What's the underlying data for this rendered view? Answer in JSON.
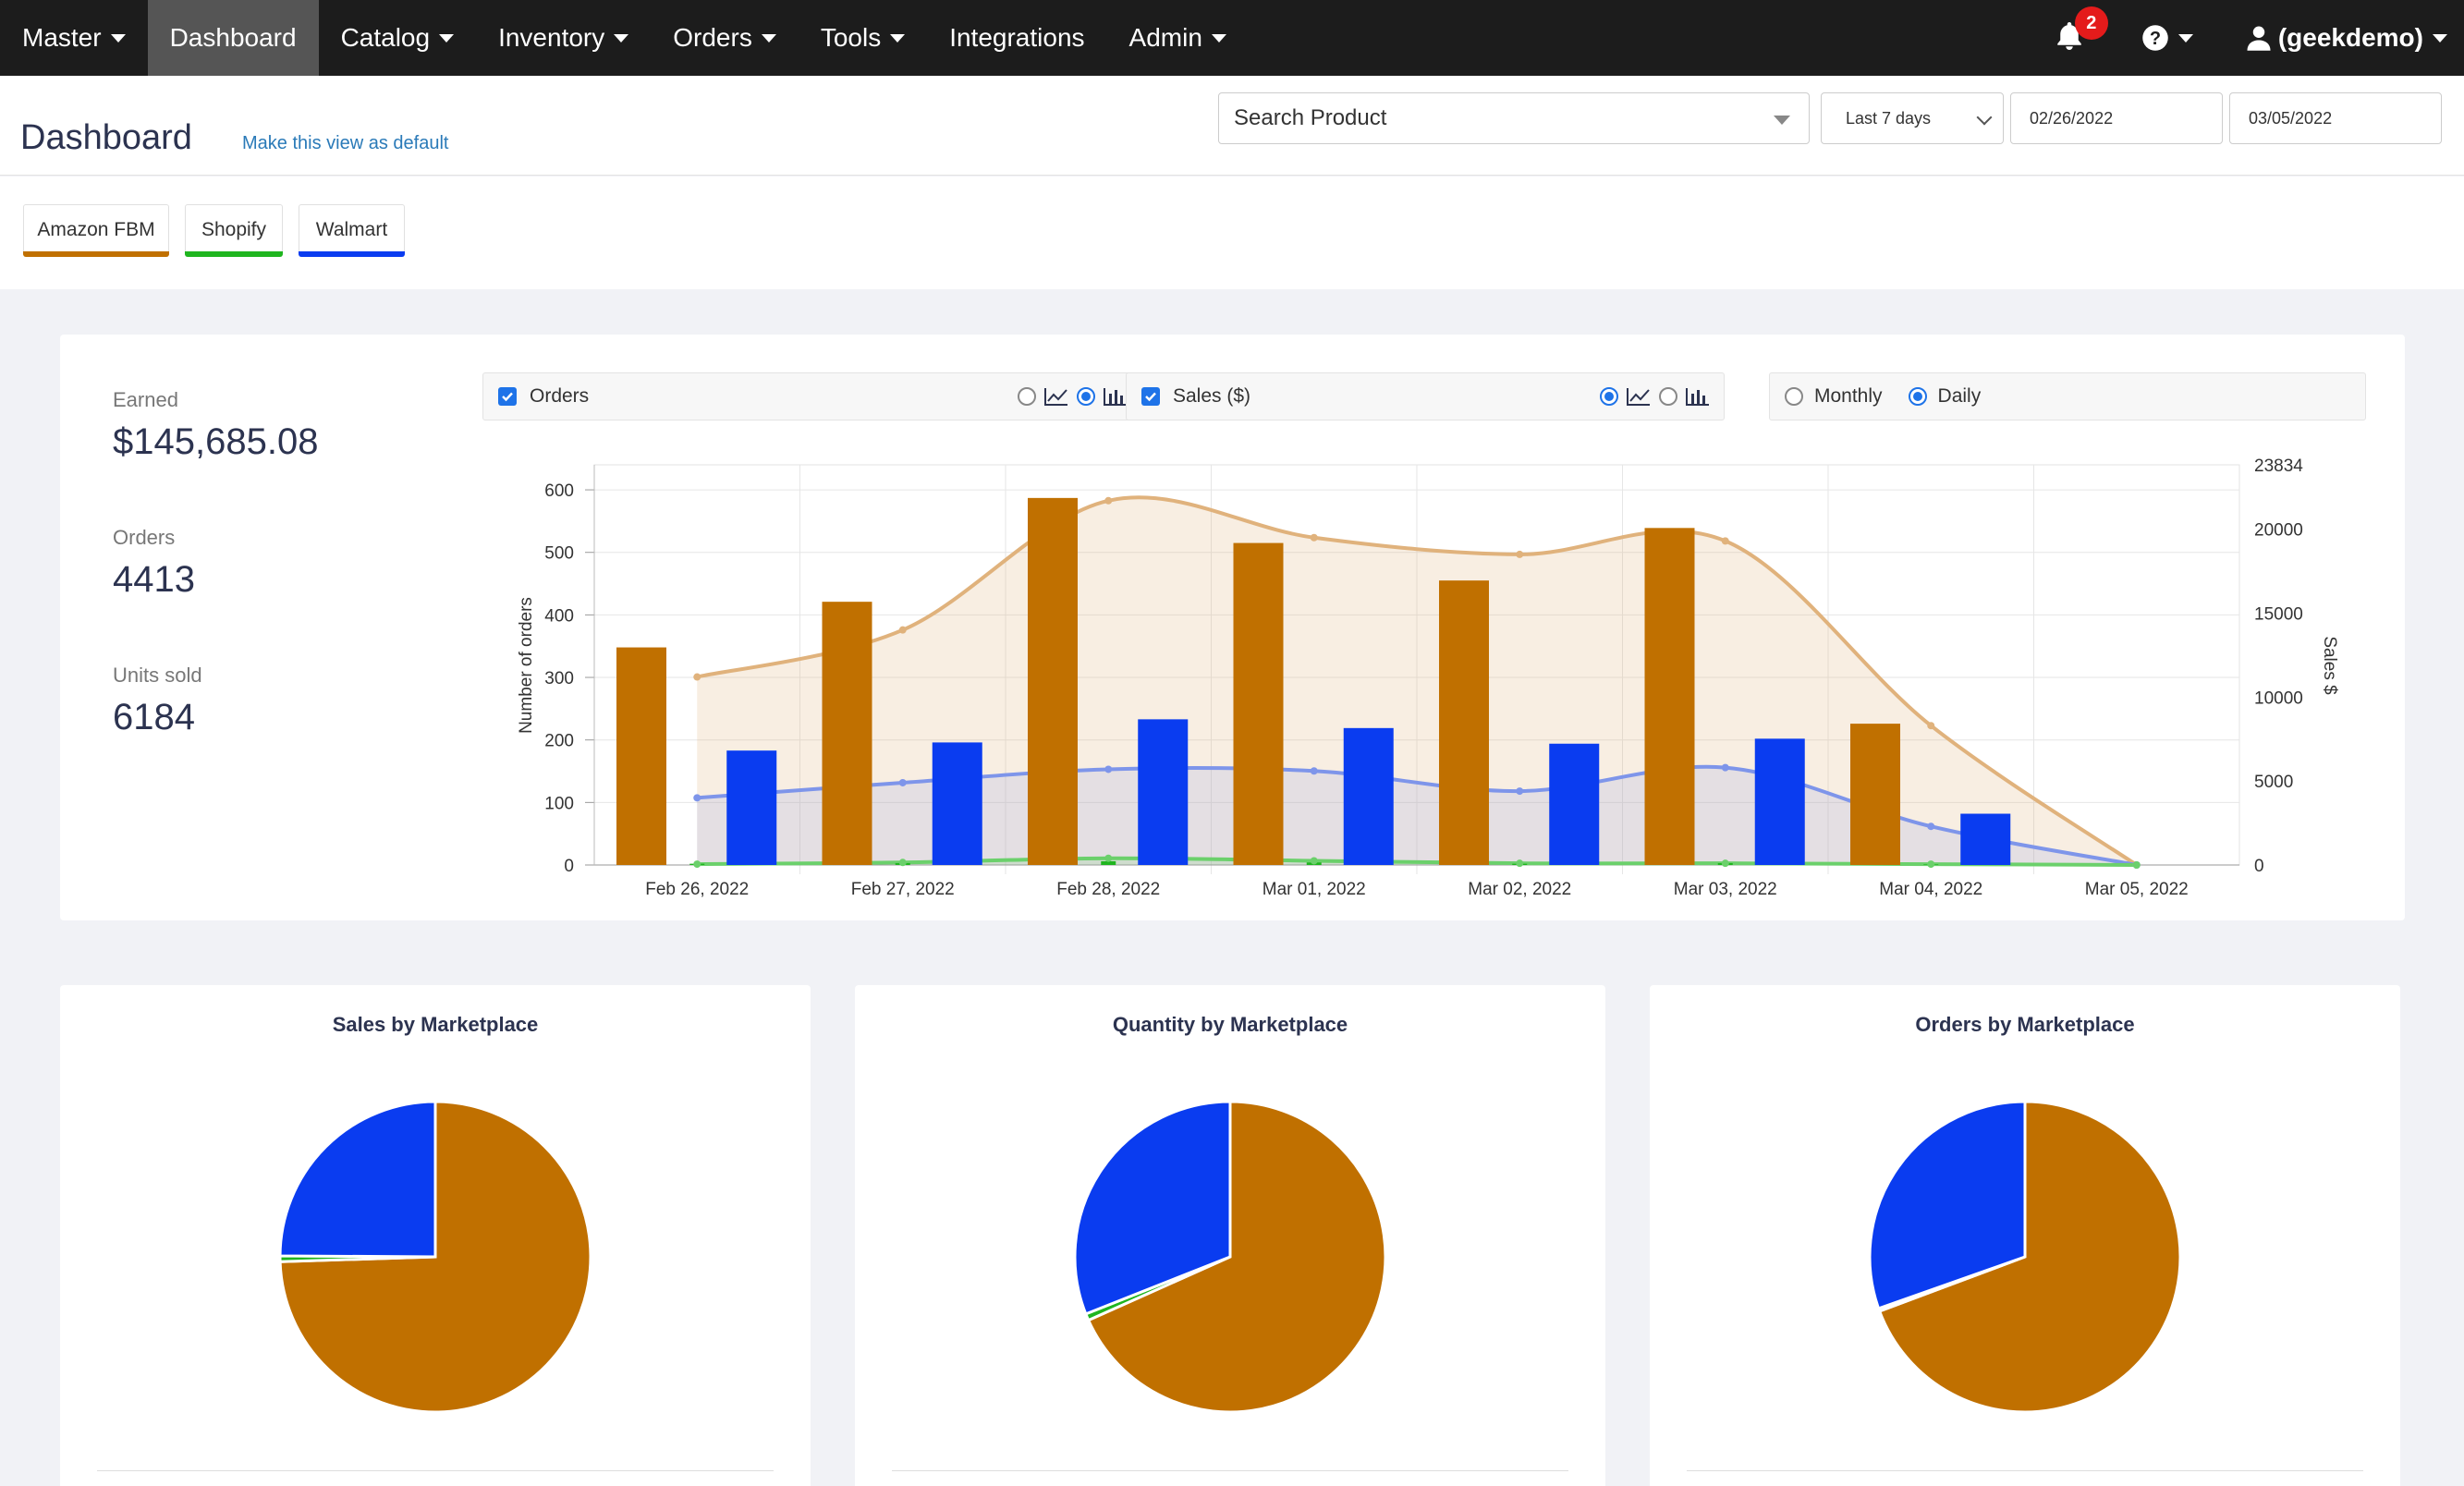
{
  "navbar": {
    "items": [
      {
        "label": "Master",
        "dropdown": true
      },
      {
        "label": "Dashboard",
        "dropdown": false,
        "active": true
      },
      {
        "label": "Catalog",
        "dropdown": true
      },
      {
        "label": "Inventory",
        "dropdown": true
      },
      {
        "label": "Orders",
        "dropdown": true
      },
      {
        "label": "Tools",
        "dropdown": true
      },
      {
        "label": "Integrations",
        "dropdown": false
      },
      {
        "label": "Admin",
        "dropdown": true
      }
    ],
    "notification_count": "2",
    "user_label": "(geekdemo)"
  },
  "header": {
    "title": "Dashboard",
    "default_link": "Make this view as default",
    "search_placeholder": "Search Product",
    "range_value": "Last 7 days",
    "date_from": "02/26/2022",
    "date_to": "03/05/2022"
  },
  "marketplaces": [
    {
      "label": "Amazon FBM",
      "color": "#c07000"
    },
    {
      "label": "Shopify",
      "color": "#1fb51f"
    },
    {
      "label": "Walmart",
      "color": "#0a3cf0"
    }
  ],
  "stats": {
    "earned_label": "Earned",
    "earned_value": "$145,685.08",
    "orders_label": "Orders",
    "orders_value": "4413",
    "units_label": "Units sold",
    "units_value": "6184"
  },
  "controls": {
    "orders_label": "Orders",
    "sales_label": "Sales ($)",
    "monthly_label": "Monthly",
    "daily_label": "Daily"
  },
  "chart_data": {
    "type": "bar",
    "categories": [
      "Feb 26, 2022",
      "Feb 27, 2022",
      "Feb 28, 2022",
      "Mar 01, 2022",
      "Mar 02, 2022",
      "Mar 03, 2022",
      "Mar 04, 2022",
      "Mar 05, 2022"
    ],
    "ylabel": "Number of orders",
    "ylabel_right": "Sales $",
    "ylim": [
      0,
      640
    ],
    "yticks": [
      0,
      100,
      200,
      300,
      400,
      500,
      600
    ],
    "ylim_right": [
      0,
      23834
    ],
    "yticks_right": [
      0,
      5000,
      10000,
      15000,
      20000,
      23834
    ],
    "grid": true,
    "bar_series": [
      {
        "name": "Amazon FBM",
        "color": "#c07000",
        "values": [
          348,
          421,
          587,
          515,
          455,
          539,
          226,
          0
        ]
      },
      {
        "name": "Walmart",
        "color": "#0a3cf0",
        "values": [
          183,
          196,
          233,
          219,
          194,
          202,
          82,
          0
        ]
      },
      {
        "name": "Shopify",
        "color": "#1fb51f",
        "values": [
          2,
          3,
          6,
          4,
          2,
          3,
          1,
          0
        ]
      }
    ],
    "sales_series": [
      {
        "name": "Amazon FBM",
        "color": "#e0b27c",
        "values": [
          11200,
          14000,
          21700,
          19500,
          18500,
          19300,
          8300,
          0
        ]
      },
      {
        "name": "Walmart",
        "color": "#7e95ea",
        "values": [
          4000,
          4900,
          5700,
          5600,
          4400,
          5800,
          2300,
          0
        ]
      },
      {
        "name": "Shopify",
        "color": "#6bd06b",
        "values": [
          50,
          150,
          400,
          250,
          100,
          100,
          50,
          0
        ]
      }
    ]
  },
  "pies": [
    {
      "title": "Sales by Marketplace",
      "slices": [
        {
          "name": "Amazon FBM",
          "value": 74.5,
          "color": "#c07000"
        },
        {
          "name": "Shopify",
          "value": 0.6,
          "color": "#1fb51f"
        },
        {
          "name": "Walmart",
          "value": 24.9,
          "color": "#0a3cf0"
        }
      ]
    },
    {
      "title": "Quantity by Marketplace",
      "slices": [
        {
          "name": "Amazon FBM",
          "value": 68.3,
          "color": "#c07000"
        },
        {
          "name": "Shopify",
          "value": 0.7,
          "color": "#1fb51f"
        },
        {
          "name": "Walmart",
          "value": 31.0,
          "color": "#0a3cf0"
        }
      ]
    },
    {
      "title": "Orders by Marketplace",
      "slices": [
        {
          "name": "Amazon FBM",
          "value": 69.3,
          "color": "#c07000"
        },
        {
          "name": "Shopify",
          "value": 0.3,
          "color": "#1fb51f"
        },
        {
          "name": "Walmart",
          "value": 30.4,
          "color": "#0a3cf0"
        }
      ]
    }
  ]
}
